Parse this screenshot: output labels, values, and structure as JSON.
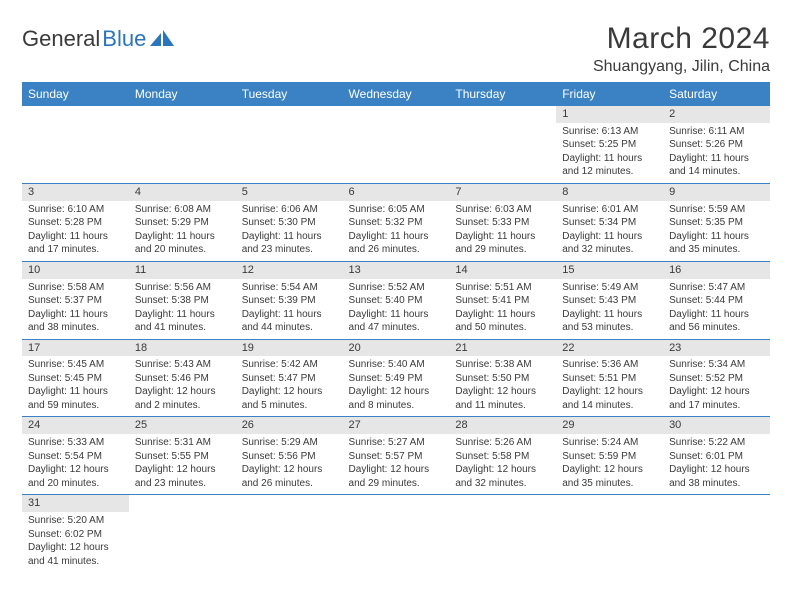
{
  "brand": {
    "part1": "General",
    "part2": "Blue"
  },
  "title": "March 2024",
  "location": "Shuangyang, Jilin, China",
  "colors": {
    "header_bg": "#3b82c4",
    "header_fg": "#ffffff",
    "daynum_bg": "#e6e6e6",
    "row_border": "#3b82c4",
    "text": "#3a3a3a",
    "logo_blue": "#2a75bb",
    "page_bg": "#ffffff"
  },
  "weekdays": [
    "Sunday",
    "Monday",
    "Tuesday",
    "Wednesday",
    "Thursday",
    "Friday",
    "Saturday"
  ],
  "weeks": [
    {
      "days": [
        {
          "num": "",
          "lines": []
        },
        {
          "num": "",
          "lines": []
        },
        {
          "num": "",
          "lines": []
        },
        {
          "num": "",
          "lines": []
        },
        {
          "num": "",
          "lines": []
        },
        {
          "num": "1",
          "lines": [
            "Sunrise: 6:13 AM",
            "Sunset: 5:25 PM",
            "Daylight: 11 hours",
            "and 12 minutes."
          ]
        },
        {
          "num": "2",
          "lines": [
            "Sunrise: 6:11 AM",
            "Sunset: 5:26 PM",
            "Daylight: 11 hours",
            "and 14 minutes."
          ]
        }
      ]
    },
    {
      "days": [
        {
          "num": "3",
          "lines": [
            "Sunrise: 6:10 AM",
            "Sunset: 5:28 PM",
            "Daylight: 11 hours",
            "and 17 minutes."
          ]
        },
        {
          "num": "4",
          "lines": [
            "Sunrise: 6:08 AM",
            "Sunset: 5:29 PM",
            "Daylight: 11 hours",
            "and 20 minutes."
          ]
        },
        {
          "num": "5",
          "lines": [
            "Sunrise: 6:06 AM",
            "Sunset: 5:30 PM",
            "Daylight: 11 hours",
            "and 23 minutes."
          ]
        },
        {
          "num": "6",
          "lines": [
            "Sunrise: 6:05 AM",
            "Sunset: 5:32 PM",
            "Daylight: 11 hours",
            "and 26 minutes."
          ]
        },
        {
          "num": "7",
          "lines": [
            "Sunrise: 6:03 AM",
            "Sunset: 5:33 PM",
            "Daylight: 11 hours",
            "and 29 minutes."
          ]
        },
        {
          "num": "8",
          "lines": [
            "Sunrise: 6:01 AM",
            "Sunset: 5:34 PM",
            "Daylight: 11 hours",
            "and 32 minutes."
          ]
        },
        {
          "num": "9",
          "lines": [
            "Sunrise: 5:59 AM",
            "Sunset: 5:35 PM",
            "Daylight: 11 hours",
            "and 35 minutes."
          ]
        }
      ]
    },
    {
      "days": [
        {
          "num": "10",
          "lines": [
            "Sunrise: 5:58 AM",
            "Sunset: 5:37 PM",
            "Daylight: 11 hours",
            "and 38 minutes."
          ]
        },
        {
          "num": "11",
          "lines": [
            "Sunrise: 5:56 AM",
            "Sunset: 5:38 PM",
            "Daylight: 11 hours",
            "and 41 minutes."
          ]
        },
        {
          "num": "12",
          "lines": [
            "Sunrise: 5:54 AM",
            "Sunset: 5:39 PM",
            "Daylight: 11 hours",
            "and 44 minutes."
          ]
        },
        {
          "num": "13",
          "lines": [
            "Sunrise: 5:52 AM",
            "Sunset: 5:40 PM",
            "Daylight: 11 hours",
            "and 47 minutes."
          ]
        },
        {
          "num": "14",
          "lines": [
            "Sunrise: 5:51 AM",
            "Sunset: 5:41 PM",
            "Daylight: 11 hours",
            "and 50 minutes."
          ]
        },
        {
          "num": "15",
          "lines": [
            "Sunrise: 5:49 AM",
            "Sunset: 5:43 PM",
            "Daylight: 11 hours",
            "and 53 minutes."
          ]
        },
        {
          "num": "16",
          "lines": [
            "Sunrise: 5:47 AM",
            "Sunset: 5:44 PM",
            "Daylight: 11 hours",
            "and 56 minutes."
          ]
        }
      ]
    },
    {
      "days": [
        {
          "num": "17",
          "lines": [
            "Sunrise: 5:45 AM",
            "Sunset: 5:45 PM",
            "Daylight: 11 hours",
            "and 59 minutes."
          ]
        },
        {
          "num": "18",
          "lines": [
            "Sunrise: 5:43 AM",
            "Sunset: 5:46 PM",
            "Daylight: 12 hours",
            "and 2 minutes."
          ]
        },
        {
          "num": "19",
          "lines": [
            "Sunrise: 5:42 AM",
            "Sunset: 5:47 PM",
            "Daylight: 12 hours",
            "and 5 minutes."
          ]
        },
        {
          "num": "20",
          "lines": [
            "Sunrise: 5:40 AM",
            "Sunset: 5:49 PM",
            "Daylight: 12 hours",
            "and 8 minutes."
          ]
        },
        {
          "num": "21",
          "lines": [
            "Sunrise: 5:38 AM",
            "Sunset: 5:50 PM",
            "Daylight: 12 hours",
            "and 11 minutes."
          ]
        },
        {
          "num": "22",
          "lines": [
            "Sunrise: 5:36 AM",
            "Sunset: 5:51 PM",
            "Daylight: 12 hours",
            "and 14 minutes."
          ]
        },
        {
          "num": "23",
          "lines": [
            "Sunrise: 5:34 AM",
            "Sunset: 5:52 PM",
            "Daylight: 12 hours",
            "and 17 minutes."
          ]
        }
      ]
    },
    {
      "days": [
        {
          "num": "24",
          "lines": [
            "Sunrise: 5:33 AM",
            "Sunset: 5:54 PM",
            "Daylight: 12 hours",
            "and 20 minutes."
          ]
        },
        {
          "num": "25",
          "lines": [
            "Sunrise: 5:31 AM",
            "Sunset: 5:55 PM",
            "Daylight: 12 hours",
            "and 23 minutes."
          ]
        },
        {
          "num": "26",
          "lines": [
            "Sunrise: 5:29 AM",
            "Sunset: 5:56 PM",
            "Daylight: 12 hours",
            "and 26 minutes."
          ]
        },
        {
          "num": "27",
          "lines": [
            "Sunrise: 5:27 AM",
            "Sunset: 5:57 PM",
            "Daylight: 12 hours",
            "and 29 minutes."
          ]
        },
        {
          "num": "28",
          "lines": [
            "Sunrise: 5:26 AM",
            "Sunset: 5:58 PM",
            "Daylight: 12 hours",
            "and 32 minutes."
          ]
        },
        {
          "num": "29",
          "lines": [
            "Sunrise: 5:24 AM",
            "Sunset: 5:59 PM",
            "Daylight: 12 hours",
            "and 35 minutes."
          ]
        },
        {
          "num": "30",
          "lines": [
            "Sunrise: 5:22 AM",
            "Sunset: 6:01 PM",
            "Daylight: 12 hours",
            "and 38 minutes."
          ]
        }
      ]
    },
    {
      "last": true,
      "days": [
        {
          "num": "31",
          "lines": [
            "Sunrise: 5:20 AM",
            "Sunset: 6:02 PM",
            "Daylight: 12 hours",
            "and 41 minutes."
          ]
        },
        {
          "num": "",
          "lines": []
        },
        {
          "num": "",
          "lines": []
        },
        {
          "num": "",
          "lines": []
        },
        {
          "num": "",
          "lines": []
        },
        {
          "num": "",
          "lines": []
        },
        {
          "num": "",
          "lines": []
        }
      ]
    }
  ]
}
